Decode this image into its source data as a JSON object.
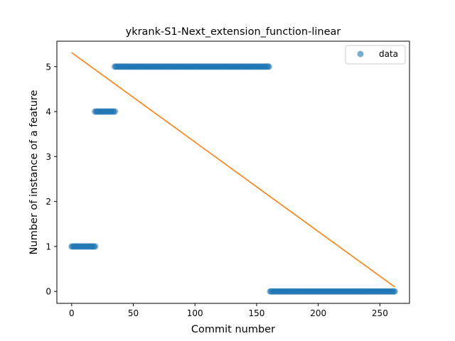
{
  "chart_data": {
    "type": "scatter",
    "title": "ykrank-S1-Next_extension_function-linear",
    "xlabel": "Commit number",
    "ylabel": "Number of instance of a feature",
    "xlim": [
      -12,
      274
    ],
    "ylim": [
      -0.265,
      5.565
    ],
    "xticks": [
      0,
      50,
      100,
      150,
      200,
      250
    ],
    "yticks": [
      0,
      1,
      2,
      3,
      4,
      5
    ],
    "grid": false,
    "legend": {
      "position": "top-right",
      "entries": [
        "data"
      ]
    },
    "colors": {
      "data": "#1f77b4",
      "fit": "#ff7f0e"
    },
    "series": [
      {
        "name": "data",
        "kind": "scatter",
        "segments": [
          {
            "x_start": 0,
            "x_end": 19,
            "y": 1
          },
          {
            "x_start": 19,
            "x_end": 35,
            "y": 4
          },
          {
            "x_start": 35,
            "x_end": 160,
            "y": 5
          },
          {
            "x_start": 161,
            "x_end": 262,
            "y": 0
          }
        ]
      },
      {
        "kind": "line",
        "x": [
          0,
          262
        ],
        "y": [
          5.31,
          0.1
        ]
      }
    ]
  }
}
